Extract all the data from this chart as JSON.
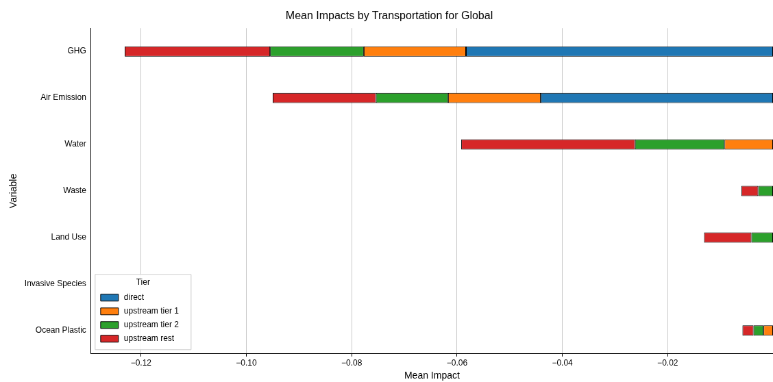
{
  "chart_data": {
    "type": "bar",
    "orientation": "horizontal",
    "stacked": true,
    "title": "Mean Impacts by Transportation for Global",
    "xlabel": "Mean Impact",
    "ylabel": "Variable",
    "legend_title": "Tier",
    "legend": "bottom left",
    "grid": "x",
    "categories": [
      "GHG",
      "Air Emission",
      "Water",
      "Waste",
      "Land Use",
      "Invasive Species",
      "Ocean Plastic"
    ],
    "xlim": [
      -0.1295,
      0
    ],
    "xticks": [
      {
        "value": -0.12,
        "label": "−0.12"
      },
      {
        "value": -0.1,
        "label": "−0.10"
      },
      {
        "value": -0.08,
        "label": "−0.08"
      },
      {
        "value": -0.06,
        "label": "−0.06"
      },
      {
        "value": -0.04,
        "label": "−0.04"
      },
      {
        "value": -0.02,
        "label": "−0.02"
      }
    ],
    "series": [
      {
        "name": "direct",
        "color": "#1f77b4",
        "values": [
          -0.0583,
          -0.0441,
          0,
          0,
          0,
          0,
          0
        ]
      },
      {
        "name": "upstream tier 1",
        "color": "#ff7f0e",
        "values": [
          -0.0194,
          -0.0176,
          -0.0092,
          0,
          0,
          0,
          -0.0018
        ]
      },
      {
        "name": "upstream tier 2",
        "color": "#2ca02c",
        "values": [
          -0.0178,
          -0.0137,
          -0.017,
          -0.0028,
          -0.0041,
          0,
          -0.0019
        ]
      },
      {
        "name": "upstream rest",
        "color": "#d62728",
        "values": [
          -0.0276,
          -0.0196,
          -0.033,
          -0.0032,
          -0.009,
          0,
          -0.0021
        ]
      }
    ]
  }
}
